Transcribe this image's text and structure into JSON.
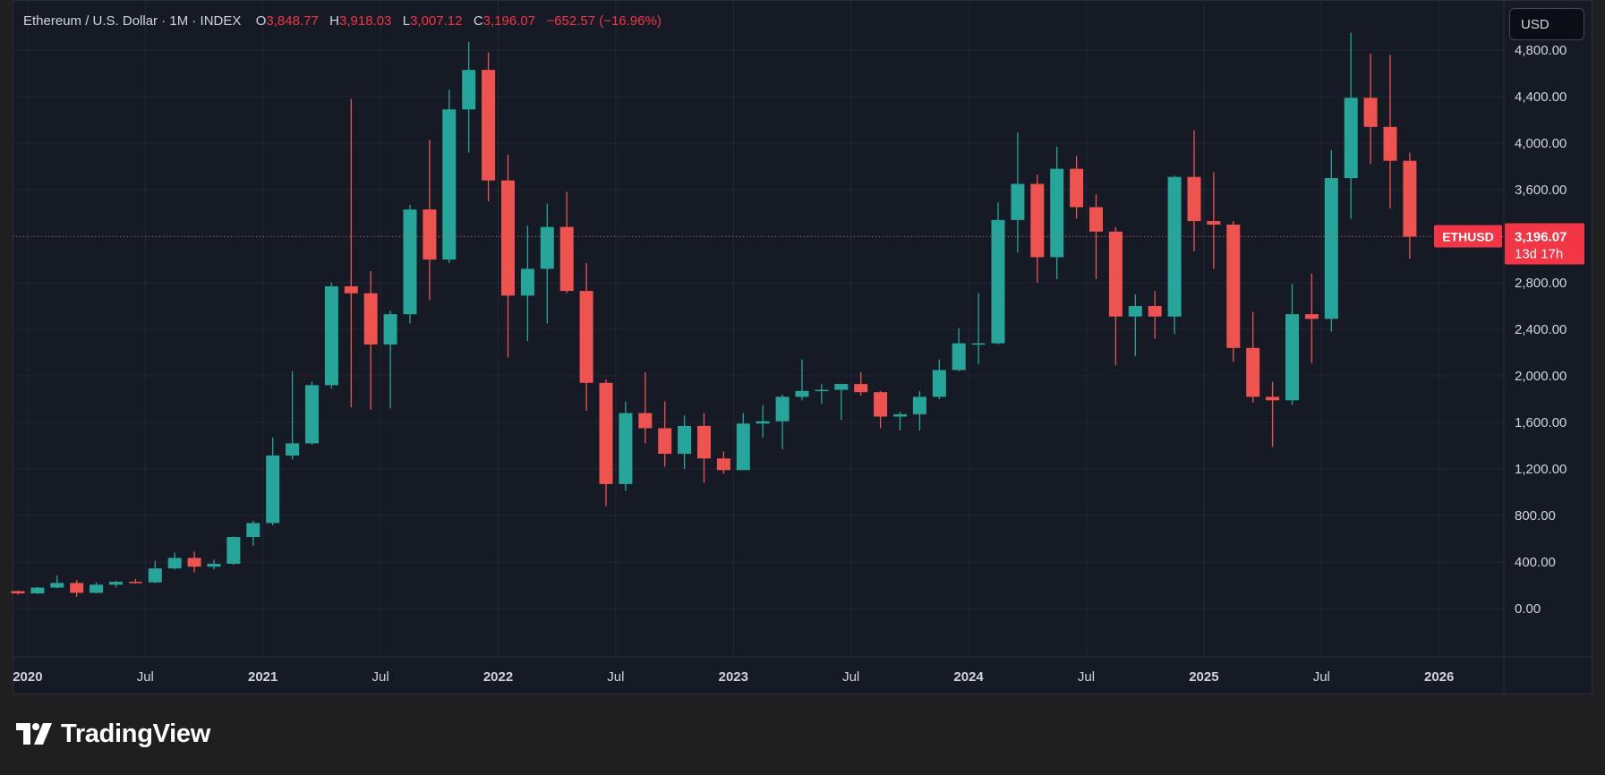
{
  "header": {
    "symbol": "Ethereum / U.S. Dollar · 1M · INDEX",
    "o_label": "O",
    "o_value": "3,848.77",
    "h_label": "H",
    "h_value": "3,918.03",
    "l_label": "L",
    "l_value": "3,007.12",
    "c_label": "C",
    "c_value": "3,196.07",
    "change": "−652.57 (−16.96%)"
  },
  "currency_button": "USD",
  "last_price": {
    "ticker": "ETHUSD",
    "price": "3,196.07",
    "countdown": "13d 17h"
  },
  "branding": {
    "logo_text": "TradingView"
  },
  "colors": {
    "up": "#26a69a",
    "down": "#ef5350",
    "background": "#161a25",
    "grid": "#232733",
    "axis_text": "#d1d4dc",
    "last_price_tag": "#f23645"
  },
  "chart_data": {
    "type": "candlestick",
    "ylim": [
      -400,
      5200
    ],
    "y_ticks": [
      "0.00",
      "400.00",
      "800.00",
      "1,200.00",
      "1,600.00",
      "2,000.00",
      "2,400.00",
      "2,800.00",
      "3,200.00",
      "3,600.00",
      "4,000.00",
      "4,400.00",
      "4,800.00"
    ],
    "x_tick_labels": [
      {
        "label": "2020",
        "index": 1
      },
      {
        "label": "Jul",
        "index": 7
      },
      {
        "label": "2021",
        "index": 13
      },
      {
        "label": "Jul",
        "index": 19
      },
      {
        "label": "2022",
        "index": 25
      },
      {
        "label": "Jul",
        "index": 31
      },
      {
        "label": "2023",
        "index": 37
      },
      {
        "label": "Jul",
        "index": 43
      },
      {
        "label": "2024",
        "index": 49
      },
      {
        "label": "Jul",
        "index": 55
      },
      {
        "label": "2025",
        "index": 61
      },
      {
        "label": "Jul",
        "index": 67
      },
      {
        "label": "2026",
        "index": 73
      }
    ],
    "candles": [
      {
        "t": "2019-12",
        "o": 150,
        "h": 155,
        "l": 120,
        "c": 130
      },
      {
        "t": "2020-01",
        "o": 130,
        "h": 185,
        "l": 125,
        "c": 180
      },
      {
        "t": "2020-02",
        "o": 180,
        "h": 285,
        "l": 175,
        "c": 220
      },
      {
        "t": "2020-03",
        "o": 220,
        "h": 245,
        "l": 100,
        "c": 135
      },
      {
        "t": "2020-04",
        "o": 135,
        "h": 225,
        "l": 130,
        "c": 205
      },
      {
        "t": "2020-05",
        "o": 205,
        "h": 240,
        "l": 180,
        "c": 230
      },
      {
        "t": "2020-06",
        "o": 230,
        "h": 255,
        "l": 215,
        "c": 225
      },
      {
        "t": "2020-07",
        "o": 225,
        "h": 410,
        "l": 220,
        "c": 345
      },
      {
        "t": "2020-08",
        "o": 345,
        "h": 480,
        "l": 335,
        "c": 435
      },
      {
        "t": "2020-09",
        "o": 435,
        "h": 490,
        "l": 310,
        "c": 360
      },
      {
        "t": "2020-10",
        "o": 360,
        "h": 420,
        "l": 335,
        "c": 385
      },
      {
        "t": "2020-11",
        "o": 385,
        "h": 620,
        "l": 375,
        "c": 615
      },
      {
        "t": "2020-12",
        "o": 615,
        "h": 755,
        "l": 540,
        "c": 735
      },
      {
        "t": "2021-01",
        "o": 735,
        "h": 1470,
        "l": 715,
        "c": 1315
      },
      {
        "t": "2021-02",
        "o": 1315,
        "h": 2040,
        "l": 1280,
        "c": 1420
      },
      {
        "t": "2021-03",
        "o": 1420,
        "h": 1950,
        "l": 1410,
        "c": 1920
      },
      {
        "t": "2021-04",
        "o": 1920,
        "h": 2800,
        "l": 1890,
        "c": 2770
      },
      {
        "t": "2021-05",
        "o": 2770,
        "h": 4380,
        "l": 1730,
        "c": 2710
      },
      {
        "t": "2021-06",
        "o": 2710,
        "h": 2900,
        "l": 1710,
        "c": 2270
      },
      {
        "t": "2021-07",
        "o": 2270,
        "h": 2560,
        "l": 1720,
        "c": 2530
      },
      {
        "t": "2021-08",
        "o": 2530,
        "h": 3470,
        "l": 2450,
        "c": 3430
      },
      {
        "t": "2021-09",
        "o": 3430,
        "h": 4030,
        "l": 2650,
        "c": 3000
      },
      {
        "t": "2021-10",
        "o": 3000,
        "h": 4460,
        "l": 2970,
        "c": 4290
      },
      {
        "t": "2021-11",
        "o": 4290,
        "h": 4870,
        "l": 3920,
        "c": 4630
      },
      {
        "t": "2021-12",
        "o": 4630,
        "h": 4780,
        "l": 3500,
        "c": 3680
      },
      {
        "t": "2022-01",
        "o": 3680,
        "h": 3900,
        "l": 2160,
        "c": 2690
      },
      {
        "t": "2022-02",
        "o": 2690,
        "h": 3290,
        "l": 2300,
        "c": 2920
      },
      {
        "t": "2022-03",
        "o": 2920,
        "h": 3480,
        "l": 2450,
        "c": 3280
      },
      {
        "t": "2022-04",
        "o": 3280,
        "h": 3580,
        "l": 2710,
        "c": 2730
      },
      {
        "t": "2022-05",
        "o": 2730,
        "h": 2970,
        "l": 1700,
        "c": 1940
      },
      {
        "t": "2022-06",
        "o": 1940,
        "h": 1970,
        "l": 880,
        "c": 1070
      },
      {
        "t": "2022-07",
        "o": 1070,
        "h": 1780,
        "l": 1010,
        "c": 1680
      },
      {
        "t": "2022-08",
        "o": 1680,
        "h": 2030,
        "l": 1420,
        "c": 1550
      },
      {
        "t": "2022-09",
        "o": 1550,
        "h": 1780,
        "l": 1220,
        "c": 1330
      },
      {
        "t": "2022-10",
        "o": 1330,
        "h": 1660,
        "l": 1200,
        "c": 1570
      },
      {
        "t": "2022-11",
        "o": 1570,
        "h": 1680,
        "l": 1080,
        "c": 1290
      },
      {
        "t": "2022-12",
        "o": 1290,
        "h": 1350,
        "l": 1160,
        "c": 1190
      },
      {
        "t": "2023-01",
        "o": 1190,
        "h": 1680,
        "l": 1190,
        "c": 1590
      },
      {
        "t": "2023-02",
        "o": 1590,
        "h": 1750,
        "l": 1470,
        "c": 1610
      },
      {
        "t": "2023-03",
        "o": 1610,
        "h": 1840,
        "l": 1370,
        "c": 1820
      },
      {
        "t": "2023-04",
        "o": 1820,
        "h": 2140,
        "l": 1790,
        "c": 1870
      },
      {
        "t": "2023-05",
        "o": 1870,
        "h": 1930,
        "l": 1760,
        "c": 1880
      },
      {
        "t": "2023-06",
        "o": 1880,
        "h": 1930,
        "l": 1620,
        "c": 1930
      },
      {
        "t": "2023-07",
        "o": 1930,
        "h": 2030,
        "l": 1830,
        "c": 1860
      },
      {
        "t": "2023-08",
        "o": 1860,
        "h": 1870,
        "l": 1550,
        "c": 1650
      },
      {
        "t": "2023-09",
        "o": 1650,
        "h": 1690,
        "l": 1530,
        "c": 1670
      },
      {
        "t": "2023-10",
        "o": 1670,
        "h": 1870,
        "l": 1530,
        "c": 1820
      },
      {
        "t": "2023-11",
        "o": 1820,
        "h": 2140,
        "l": 1800,
        "c": 2050
      },
      {
        "t": "2023-12",
        "o": 2050,
        "h": 2410,
        "l": 2040,
        "c": 2280
      },
      {
        "t": "2024-01",
        "o": 2280,
        "h": 2710,
        "l": 2100,
        "c": 2280
      },
      {
        "t": "2024-02",
        "o": 2280,
        "h": 3490,
        "l": 2270,
        "c": 3340
      },
      {
        "t": "2024-03",
        "o": 3340,
        "h": 4090,
        "l": 3060,
        "c": 3650
      },
      {
        "t": "2024-04",
        "o": 3650,
        "h": 3730,
        "l": 2800,
        "c": 3020
      },
      {
        "t": "2024-05",
        "o": 3020,
        "h": 3970,
        "l": 2830,
        "c": 3780
      },
      {
        "t": "2024-06",
        "o": 3780,
        "h": 3890,
        "l": 3350,
        "c": 3450
      },
      {
        "t": "2024-07",
        "o": 3450,
        "h": 3560,
        "l": 2830,
        "c": 3240
      },
      {
        "t": "2024-08",
        "o": 3240,
        "h": 3280,
        "l": 2090,
        "c": 2510
      },
      {
        "t": "2024-09",
        "o": 2510,
        "h": 2700,
        "l": 2170,
        "c": 2600
      },
      {
        "t": "2024-10",
        "o": 2600,
        "h": 2730,
        "l": 2320,
        "c": 2510
      },
      {
        "t": "2024-11",
        "o": 2510,
        "h": 3720,
        "l": 2360,
        "c": 3710
      },
      {
        "t": "2024-12",
        "o": 3710,
        "h": 4110,
        "l": 3070,
        "c": 3330
      },
      {
        "t": "2025-01",
        "o": 3330,
        "h": 3750,
        "l": 2920,
        "c": 3300
      },
      {
        "t": "2025-02",
        "o": 3300,
        "h": 3330,
        "l": 2120,
        "c": 2240
      },
      {
        "t": "2025-03",
        "o": 2240,
        "h": 2550,
        "l": 1770,
        "c": 1820
      },
      {
        "t": "2025-04",
        "o": 1820,
        "h": 1950,
        "l": 1390,
        "c": 1790
      },
      {
        "t": "2025-05",
        "o": 1790,
        "h": 2790,
        "l": 1750,
        "c": 2530
      },
      {
        "t": "2025-06",
        "o": 2530,
        "h": 2880,
        "l": 2110,
        "c": 2490
      },
      {
        "t": "2025-07",
        "o": 2490,
        "h": 3940,
        "l": 2380,
        "c": 3700
      },
      {
        "t": "2025-08",
        "o": 3700,
        "h": 4950,
        "l": 3350,
        "c": 4390
      },
      {
        "t": "2025-09",
        "o": 4390,
        "h": 4770,
        "l": 3820,
        "c": 4140
      },
      {
        "t": "2025-10",
        "o": 4140,
        "h": 4760,
        "l": 3440,
        "c": 3848.77
      },
      {
        "t": "2025-11",
        "o": 3848.77,
        "h": 3918.03,
        "l": 3007.12,
        "c": 3196.07
      }
    ],
    "last_close": 3196.07
  }
}
